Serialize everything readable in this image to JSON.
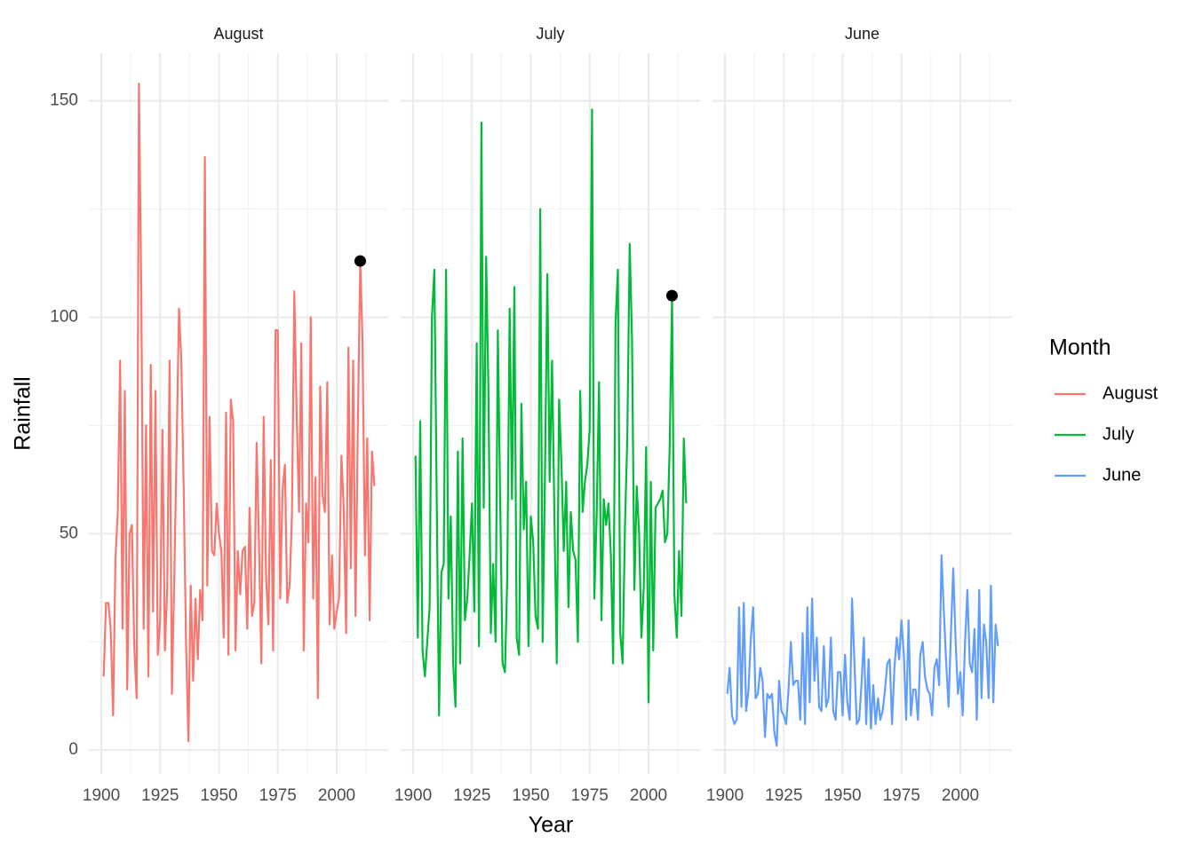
{
  "chart_data": {
    "type": "line",
    "xlabel": "Year",
    "ylabel": "Rainfall",
    "legend_title": "Month",
    "xlim": [
      1894.7,
      2021.9
    ],
    "ylim": [
      -5.5,
      161
    ],
    "xticks": [
      1900,
      1925,
      1950,
      1975,
      2000
    ],
    "xminor": [
      1912.5,
      1937.5,
      1962.5,
      1987.5,
      2012.5
    ],
    "yticks": [
      0,
      50,
      100,
      150
    ],
    "yminor": [
      25,
      75,
      125
    ],
    "grid": true,
    "x": [
      1901,
      1902,
      1903,
      1904,
      1905,
      1906,
      1907,
      1908,
      1909,
      1910,
      1911,
      1912,
      1913,
      1914,
      1915,
      1916,
      1917,
      1918,
      1919,
      1920,
      1921,
      1922,
      1923,
      1924,
      1925,
      1926,
      1927,
      1928,
      1929,
      1930,
      1931,
      1932,
      1933,
      1934,
      1935,
      1936,
      1937,
      1938,
      1939,
      1940,
      1941,
      1942,
      1943,
      1944,
      1945,
      1946,
      1947,
      1948,
      1949,
      1950,
      1951,
      1952,
      1953,
      1954,
      1955,
      1956,
      1957,
      1958,
      1959,
      1960,
      1961,
      1962,
      1963,
      1964,
      1965,
      1966,
      1967,
      1968,
      1969,
      1970,
      1971,
      1972,
      1973,
      1974,
      1975,
      1976,
      1977,
      1978,
      1979,
      1980,
      1981,
      1982,
      1983,
      1984,
      1985,
      1986,
      1987,
      1988,
      1989,
      1990,
      1991,
      1992,
      1993,
      1994,
      1995,
      1996,
      1997,
      1998,
      1999,
      2000,
      2001,
      2002,
      2003,
      2004,
      2005,
      2006,
      2007,
      2008,
      2009,
      2010,
      2011,
      2012,
      2013,
      2014,
      2015,
      2016
    ],
    "series": [
      {
        "name": "August",
        "color": "#F8766D",
        "highlight": {
          "x": 2010,
          "y": 113
        },
        "values": [
          17,
          34,
          34,
          28,
          8,
          44,
          55,
          90,
          28,
          83,
          14,
          50,
          52,
          24,
          12,
          154,
          104,
          28,
          75,
          17,
          89,
          32,
          83,
          22,
          30,
          74,
          23,
          37,
          90,
          13,
          40,
          70,
          102,
          90,
          60,
          25,
          2,
          38,
          16,
          35,
          21,
          37,
          30,
          137,
          38,
          77,
          46,
          45,
          57,
          50,
          46,
          26,
          78,
          22,
          81,
          76,
          23,
          46,
          36,
          46,
          47,
          28,
          56,
          31,
          34,
          71,
          48,
          20,
          77,
          40,
          29,
          67,
          23,
          97,
          97,
          35,
          60,
          66,
          34,
          38,
          54,
          106,
          78,
          55,
          94,
          23,
          57,
          48,
          100,
          35,
          63,
          12,
          84,
          59,
          55,
          85,
          29,
          45,
          28,
          32,
          35,
          68,
          56,
          27,
          93,
          42,
          90,
          31,
          75,
          113,
          94,
          45,
          72,
          30,
          69,
          61
        ]
      },
      {
        "name": "July",
        "color": "#00BA38",
        "highlight": {
          "x": 2010,
          "y": 105
        },
        "values": [
          68,
          26,
          76,
          23,
          17,
          25,
          33,
          100,
          111,
          60,
          8,
          41,
          43,
          111,
          35,
          54,
          20,
          10,
          69,
          20,
          72,
          30,
          35,
          45,
          57,
          32,
          94,
          24,
          145,
          56,
          114,
          83,
          27,
          43,
          25,
          97,
          56,
          20,
          18,
          40,
          102,
          58,
          107,
          26,
          22,
          80,
          51,
          62,
          24,
          54,
          48,
          31,
          28,
          125,
          25,
          63,
          110,
          62,
          90,
          55,
          20,
          81,
          66,
          46,
          62,
          33,
          55,
          46,
          44,
          25,
          83,
          55,
          62,
          66,
          74,
          148,
          35,
          55,
          85,
          30,
          58,
          52,
          57,
          45,
          20,
          99,
          111,
          27,
          20,
          52,
          72,
          117,
          95,
          37,
          61,
          50,
          26,
          38,
          70,
          11,
          62,
          23,
          56,
          57,
          58,
          60,
          48,
          50,
          70,
          105,
          36,
          26,
          46,
          31,
          72,
          57
        ]
      },
      {
        "name": "June",
        "color": "#619CFF",
        "values": [
          13,
          19,
          8,
          6,
          7,
          33,
          10,
          34,
          9,
          14,
          26,
          33,
          12,
          13,
          19,
          16,
          3,
          13,
          12,
          13,
          4,
          1,
          16,
          9,
          8,
          6,
          14,
          25,
          15,
          16,
          16,
          7,
          27,
          6,
          33,
          11,
          35,
          16,
          26,
          10,
          9,
          24,
          10,
          12,
          26,
          9,
          7,
          18,
          18,
          8,
          22,
          11,
          7,
          35,
          20,
          6,
          7,
          15,
          26,
          6,
          21,
          5,
          15,
          6,
          12,
          7,
          9,
          14,
          20,
          21,
          6,
          19,
          26,
          21,
          30,
          22,
          7,
          30,
          8,
          14,
          14,
          7,
          22,
          25,
          17,
          14,
          13,
          8,
          19,
          21,
          15,
          45,
          32,
          20,
          10,
          27,
          42,
          25,
          13,
          18,
          8,
          25,
          37,
          20,
          18,
          28,
          7,
          37,
          12,
          29,
          25,
          12,
          38,
          11,
          29,
          24
        ]
      }
    ]
  }
}
